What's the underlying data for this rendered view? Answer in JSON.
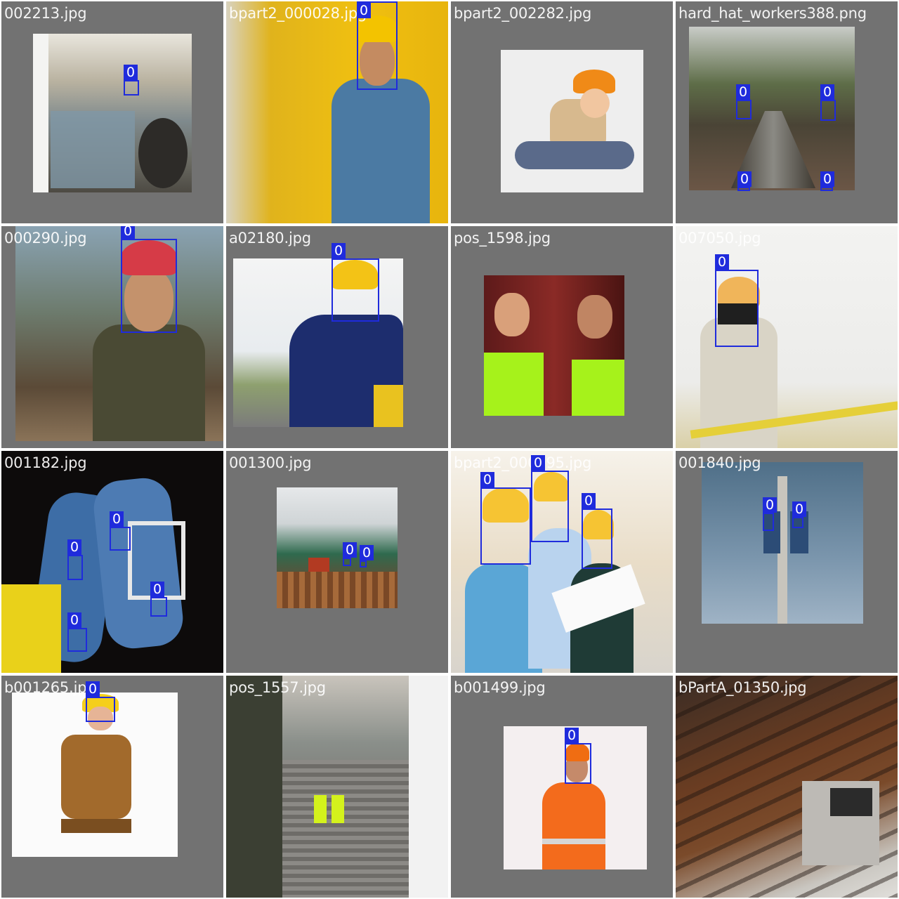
{
  "grid": {
    "columns": 4,
    "rows": 4,
    "label_color": "#ffffff",
    "box_color": "#1f2bdc",
    "tile_background": "#727272"
  },
  "tiles": [
    {
      "filename": "002213.jpg",
      "detections": [
        "0"
      ]
    },
    {
      "filename": "bpart2_000028.jpg",
      "detections": [
        "0"
      ]
    },
    {
      "filename": "bpart2_002282.jpg",
      "detections": []
    },
    {
      "filename": "hard_hat_workers388.png",
      "detections": [
        "0",
        "0",
        "0",
        "0"
      ]
    },
    {
      "filename": "000290.jpg",
      "detections": [
        "0"
      ]
    },
    {
      "filename": "a02180.jpg",
      "detections": [
        "0"
      ]
    },
    {
      "filename": "pos_1598.jpg",
      "detections": []
    },
    {
      "filename": "007050.jpg",
      "detections": [
        "0"
      ]
    },
    {
      "filename": "001182.jpg",
      "detections": [
        "0",
        "0",
        "0",
        "0"
      ]
    },
    {
      "filename": "001300.jpg",
      "detections": [
        "0",
        "0"
      ]
    },
    {
      "filename": "bpart2_000095.jpg",
      "detections": [
        "0",
        "0",
        "0"
      ]
    },
    {
      "filename": "001840.jpg",
      "detections": [
        "0",
        "0"
      ]
    },
    {
      "filename": "b001265.jpg",
      "detections": [
        "0"
      ]
    },
    {
      "filename": "pos_1557.jpg",
      "detections": []
    },
    {
      "filename": "b001499.jpg",
      "detections": [
        "0"
      ]
    },
    {
      "filename": "bPartA_01350.jpg",
      "detections": []
    }
  ]
}
